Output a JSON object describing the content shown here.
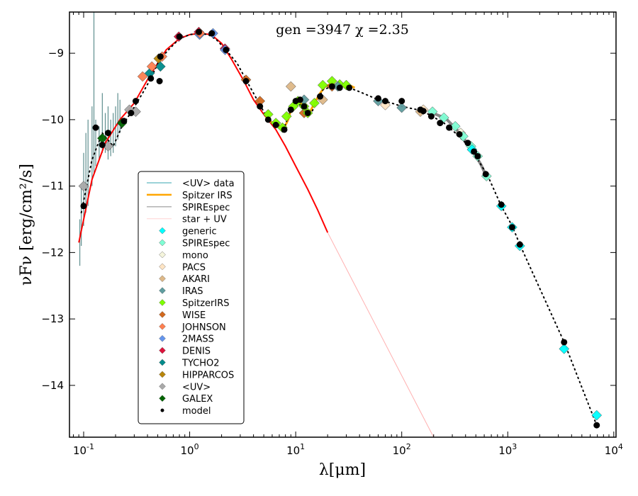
{
  "chart_data": {
    "type": "scatter",
    "title": "",
    "annotation": "gen =3947 χ =2.35",
    "xlabel": "λ[μm]",
    "ylabel": "νFν [erg/cm²/s]",
    "xscale": "log",
    "xlim": [
      0.0735,
      10500
    ],
    "ylim": [
      -14.78,
      -8.38
    ],
    "xticks": [
      0.1,
      1,
      10,
      100,
      1000,
      10000
    ],
    "xtick_labels": [
      {
        "base": "10",
        "exp": "-1"
      },
      {
        "base": "10",
        "exp": "0"
      },
      {
        "base": "10",
        "exp": "1"
      },
      {
        "base": "10",
        "exp": "2"
      },
      {
        "base": "10",
        "exp": "3"
      },
      {
        "base": "10",
        "exp": "4"
      }
    ],
    "yticks": [
      -9,
      -10,
      -11,
      -12,
      -13,
      -14
    ],
    "ytick_labels": [
      "−9",
      "−10",
      "−11",
      "−12",
      "−13",
      "−14"
    ],
    "grid": false,
    "legend_position": "center-left",
    "legend": [
      {
        "label": "<UV> data",
        "kind": "line",
        "color": "#5fb8c0"
      },
      {
        "label": "Spitzer IRS",
        "kind": "line",
        "color": "#ffa500"
      },
      {
        "label": "SPIREspec",
        "kind": "line",
        "color": "#999999"
      },
      {
        "label": "star + UV",
        "kind": "line",
        "color": "#ffd8d8"
      },
      {
        "label": "generic",
        "kind": "diamond",
        "color": "#00ffff"
      },
      {
        "label": "SPIREspec",
        "kind": "diamond",
        "color": "#7fffd4"
      },
      {
        "label": "mono",
        "kind": "diamond",
        "color": "#f5f5dc"
      },
      {
        "label": "PACS",
        "kind": "diamond",
        "color": "#ffe4c4"
      },
      {
        "label": "AKARI",
        "kind": "diamond",
        "color": "#deb887"
      },
      {
        "label": "IRAS",
        "kind": "diamond",
        "color": "#5f9ea0"
      },
      {
        "label": "SpitzerIRS",
        "kind": "diamond",
        "color": "#7fff00"
      },
      {
        "label": "WISE",
        "kind": "diamond",
        "color": "#d2691e"
      },
      {
        "label": "JOHNSON",
        "kind": "diamond",
        "color": "#ff7f50"
      },
      {
        "label": "2MASS",
        "kind": "diamond",
        "color": "#6495ed"
      },
      {
        "label": "DENIS",
        "kind": "diamond",
        "color": "#dc143c"
      },
      {
        "label": "TYCHO2",
        "kind": "diamond",
        "color": "#008b8b"
      },
      {
        "label": "HIPPARCOS",
        "kind": "diamond",
        "color": "#b8860b"
      },
      {
        "label": "<UV>",
        "kind": "diamond",
        "color": "#a9a9a9"
      },
      {
        "label": "GALEX",
        "kind": "diamond",
        "color": "#006400"
      },
      {
        "label": "model",
        "kind": "dot",
        "color": "#000000"
      }
    ],
    "series": [
      {
        "name": "star + UV",
        "type": "line",
        "color": "#ff0000",
        "x": [
          0.09,
          0.12,
          0.16,
          0.22,
          0.3,
          0.4,
          0.5,
          0.6,
          0.8,
          1.0,
          1.25,
          1.6,
          2.0,
          2.5,
          3.2,
          4.0,
          5.0,
          6.5,
          8.0,
          10,
          13,
          16,
          20
        ],
        "y": [
          -11.85,
          -10.9,
          -10.35,
          -10.0,
          -9.75,
          -9.4,
          -9.15,
          -8.95,
          -8.78,
          -8.72,
          -8.7,
          -8.72,
          -8.85,
          -9.1,
          -9.4,
          -9.7,
          -9.92,
          -10.15,
          -10.4,
          -10.7,
          -11.05,
          -11.35,
          -11.7
        ]
      },
      {
        "name": "star + UV (extrapolated)",
        "type": "line",
        "color": "#ffb0b0",
        "x": [
          20,
          200
        ],
        "y": [
          -11.7,
          -14.78
        ]
      },
      {
        "name": "Spitzer IRS",
        "type": "line",
        "color": "#ffa500",
        "x": [
          5.2,
          6.0,
          7.0,
          7.8,
          8.5,
          9.2,
          10.0,
          10.8,
          11.5,
          12.5,
          13.5,
          15,
          17,
          19,
          21,
          24,
          28,
          33,
          36
        ],
        "y": [
          -9.95,
          -10.05,
          -10.1,
          -10.12,
          -10.0,
          -9.8,
          -9.7,
          -9.72,
          -9.78,
          -9.88,
          -9.9,
          -9.75,
          -9.6,
          -9.5,
          -9.47,
          -9.48,
          -9.5,
          -9.49,
          -9.52
        ]
      },
      {
        "name": "SPIREspec",
        "type": "line",
        "color": "#888888",
        "x": [
          195,
          260,
          330,
          400,
          480,
          560,
          650
        ],
        "y": [
          -9.9,
          -9.98,
          -10.15,
          -10.32,
          -10.5,
          -10.68,
          -10.9
        ]
      },
      {
        "name": "model",
        "type": "dotted-line",
        "color": "#000000",
        "x": [
          0.095,
          0.12,
          0.15,
          0.19,
          0.23,
          0.29,
          0.36,
          0.43,
          0.52,
          0.63,
          0.8,
          1.0,
          1.22,
          1.5,
          1.8,
          2.2,
          2.8,
          3.4,
          4.5,
          5.5,
          6.5,
          7.8,
          9.0,
          10,
          11,
          12.5,
          14,
          16,
          18,
          22,
          26,
          32,
          40,
          60,
          80,
          100,
          140,
          180,
          250,
          320,
          400,
          500,
          650,
          870,
          1100,
          1300,
          3400,
          6900
        ],
        "y": [
          -11.4,
          -10.6,
          -10.2,
          -10.4,
          -10.1,
          -9.85,
          -9.6,
          -9.38,
          -9.1,
          -8.95,
          -8.78,
          -8.72,
          -8.7,
          -8.72,
          -8.8,
          -8.95,
          -9.15,
          -9.4,
          -9.75,
          -10.0,
          -10.05,
          -10.12,
          -9.85,
          -9.72,
          -9.78,
          -9.9,
          -9.9,
          -9.72,
          -9.55,
          -9.5,
          -9.52,
          -9.52,
          -9.58,
          -9.7,
          -9.75,
          -9.8,
          -9.85,
          -9.92,
          -10.05,
          -10.2,
          -10.35,
          -10.55,
          -10.85,
          -11.3,
          -11.6,
          -11.88,
          -13.35,
          -14.6
        ]
      }
    ],
    "points": {
      "generic": {
        "x": [
          460,
          870,
          1100,
          1300,
          3400,
          6900
        ],
        "y": [
          -10.45,
          -11.3,
          -11.62,
          -11.9,
          -13.45,
          -14.45
        ]
      },
      "SPIREspec": {
        "x": [
          195,
          250,
          320,
          380,
          450,
          520,
          630
        ],
        "y": [
          -9.88,
          -9.97,
          -10.1,
          -10.25,
          -10.4,
          -10.55,
          -10.85
        ]
      },
      "mono": {
        "x": [
          360
        ],
        "y": [
          -10.2
        ]
      },
      "PACS": {
        "x": [
          70,
          160
        ],
        "y": [
          -9.78,
          -9.85
        ]
      },
      "AKARI": {
        "x": [
          9.0,
          18,
          150
        ],
        "y": [
          -9.5,
          -9.7,
          -9.88
        ]
      },
      "IRAS": {
        "x": [
          12,
          25,
          60,
          100
        ],
        "y": [
          -9.7,
          -9.5,
          -9.72,
          -9.82
        ]
      },
      "SpitzerIRS": {
        "x": [
          5.5,
          6.5,
          7.5,
          8.2,
          9.5,
          10.5,
          12,
          13,
          15,
          18,
          22,
          26,
          30
        ],
        "y": [
          -9.92,
          -10.05,
          -10.12,
          -9.95,
          -9.8,
          -9.72,
          -9.8,
          -9.9,
          -9.75,
          -9.48,
          -9.42,
          -9.47,
          -9.48
        ]
      },
      "WISE": {
        "x": [
          3.4,
          4.6,
          12,
          22
        ],
        "y": [
          -9.4,
          -9.72,
          -9.9,
          -9.5
        ]
      },
      "JOHNSON": {
        "x": [
          0.36,
          0.44,
          0.55,
          1.25
        ],
        "y": [
          -9.35,
          -9.2,
          -9.05,
          -8.7
        ]
      },
      "2MASS": {
        "x": [
          1.24,
          1.66,
          2.16
        ],
        "y": [
          -8.72,
          -8.7,
          -8.95
        ]
      },
      "DENIS": {
        "x": [
          0.79,
          1.22,
          2.15
        ],
        "y": [
          -8.75,
          -8.68,
          -8.93
        ]
      },
      "TYCHO2": {
        "x": [
          0.42,
          0.53
        ],
        "y": [
          -9.3,
          -9.2
        ]
      },
      "HIPPARCOS": {
        "x": [
          0.51
        ],
        "y": [
          -9.08
        ]
      },
      "<UV>": {
        "x": [
          0.1,
          0.17,
          0.27,
          0.31
        ],
        "y": [
          -11.0,
          -10.4,
          -9.85,
          -9.88
        ]
      },
      "GALEX": {
        "x": [
          0.15,
          0.23
        ],
        "y": [
          -10.28,
          -10.05
        ]
      },
      "model": {
        "x": [
          0.1,
          0.13,
          0.15,
          0.17,
          0.24,
          0.28,
          0.31,
          0.43,
          0.52,
          0.53,
          0.8,
          1.22,
          1.62,
          2.2,
          3.4,
          4.6,
          5.5,
          6.5,
          7.8,
          9,
          10,
          11,
          12,
          13,
          17,
          22,
          26,
          32,
          60,
          70,
          100,
          150,
          160,
          190,
          230,
          280,
          350,
          420,
          480,
          520,
          620,
          870,
          1100,
          1300,
          3400,
          6900
        ],
        "y": [
          -11.3,
          -10.12,
          -10.38,
          -10.2,
          -10.02,
          -9.9,
          -9.72,
          -9.38,
          -9.42,
          -9.05,
          -8.75,
          -8.68,
          -8.7,
          -8.95,
          -9.42,
          -9.8,
          -10.0,
          -10.08,
          -10.15,
          -9.85,
          -9.72,
          -9.7,
          -9.8,
          -9.9,
          -9.65,
          -9.5,
          -9.52,
          -9.52,
          -9.68,
          -9.72,
          -9.72,
          -9.85,
          -9.87,
          -9.95,
          -10.05,
          -10.12,
          -10.22,
          -10.35,
          -10.48,
          -10.55,
          -10.82,
          -11.28,
          -11.62,
          -11.88,
          -13.35,
          -14.6
        ]
      }
    },
    "uv_data_spikes": {
      "x": [
        0.092,
        0.095,
        0.1,
        0.105,
        0.11,
        0.12,
        0.125,
        0.13,
        0.14,
        0.15,
        0.16,
        0.17,
        0.18,
        0.19,
        0.2,
        0.21,
        0.22
      ],
      "y_low": [
        -12.2,
        -11.9,
        -11.6,
        -11.4,
        -11.3,
        -11.0,
        -10.8,
        -10.7,
        -10.6,
        -10.5,
        -10.5,
        -10.6,
        -10.55,
        -10.5,
        -10.4,
        -10.3,
        -10.2
      ],
      "y_high": [
        -11.5,
        -11.0,
        -10.5,
        -10.2,
        -10.0,
        -9.8,
        -8.38,
        -10.0,
        -10.1,
        -9.6,
        -9.9,
        -9.8,
        -10.0,
        -9.9,
        -9.8,
        -9.6,
        -9.7
      ]
    }
  }
}
